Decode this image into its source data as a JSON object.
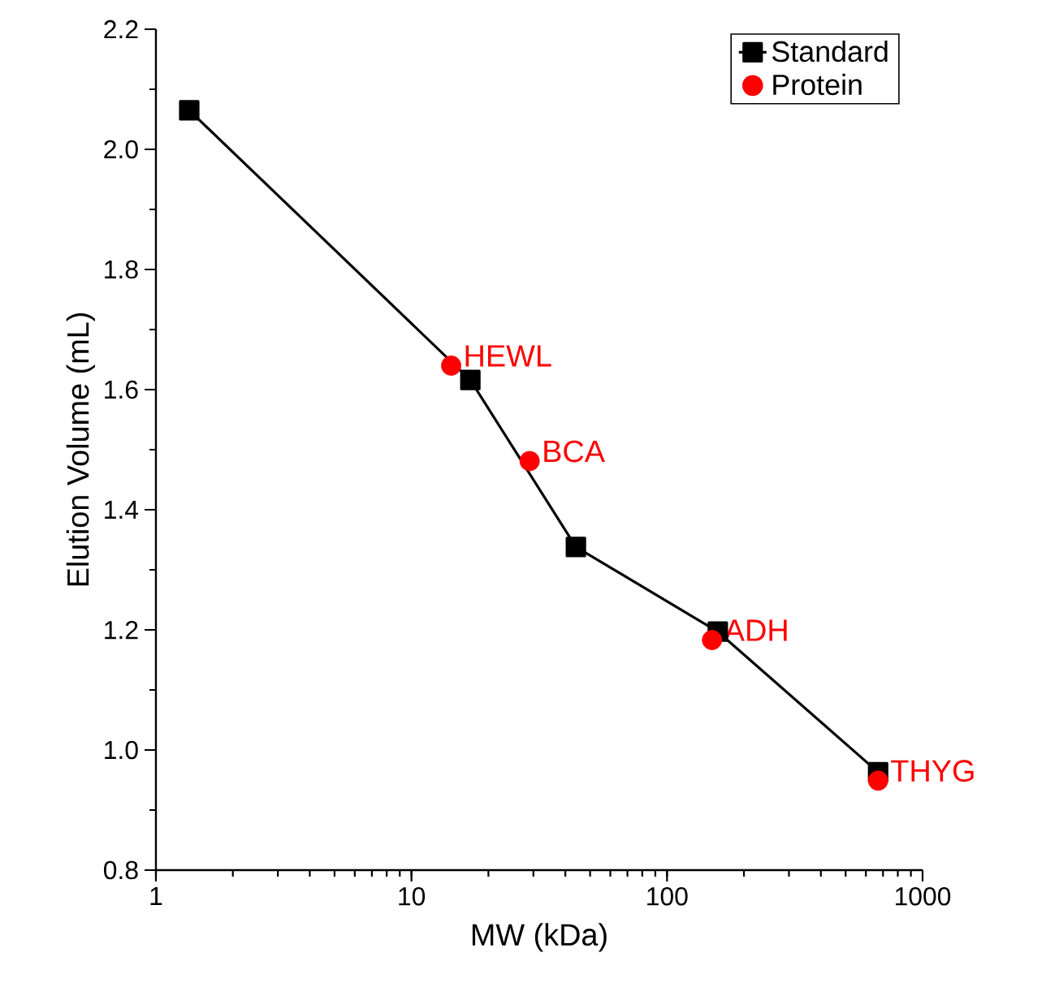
{
  "chart_data": {
    "type": "line",
    "xlabel": "MW (kDa)",
    "ylabel": "Elution Volume (mL)",
    "log": "x",
    "xlim": [
      1,
      1000
    ],
    "xticks": [
      1,
      10,
      100,
      1000
    ],
    "ylim": [
      0.8,
      2.2
    ],
    "yticks": [
      {
        "value": 0.8,
        "label": "0.8"
      },
      {
        "value": 1.0,
        "label": "1.0"
      },
      {
        "value": 1.2,
        "label": "1.2"
      },
      {
        "value": 1.4,
        "label": "1.4"
      },
      {
        "value": 1.6,
        "label": "1.6"
      },
      {
        "value": 1.8,
        "label": "1.8"
      },
      {
        "value": 2.0,
        "label": "2.0"
      },
      {
        "value": 2.2,
        "label": "2.2"
      }
    ],
    "legend": "top right",
    "grid": false,
    "series": [
      {
        "name": "Standard",
        "marker": "square",
        "color": "#000000",
        "x": [
          1.35,
          17,
          44,
          158,
          670
        ],
        "values": [
          2.065,
          1.616,
          1.338,
          1.197,
          0.963
        ]
      },
      {
        "name": "Protein",
        "type": "scatter",
        "marker": "circle",
        "color": "#ff0000",
        "x": [
          14.3,
          29,
          150,
          670
        ],
        "values": [
          1.64,
          1.481,
          1.183,
          0.949
        ]
      }
    ],
    "annotations": [
      {
        "text": "HEWL",
        "x": 14.3,
        "y": 1.64
      },
      {
        "text": "BCA",
        "x": 29,
        "y": 1.481
      },
      {
        "text": "ADH",
        "x": 150,
        "y": 1.183
      },
      {
        "text": "THYG",
        "x": 670,
        "y": 0.949
      }
    ]
  }
}
